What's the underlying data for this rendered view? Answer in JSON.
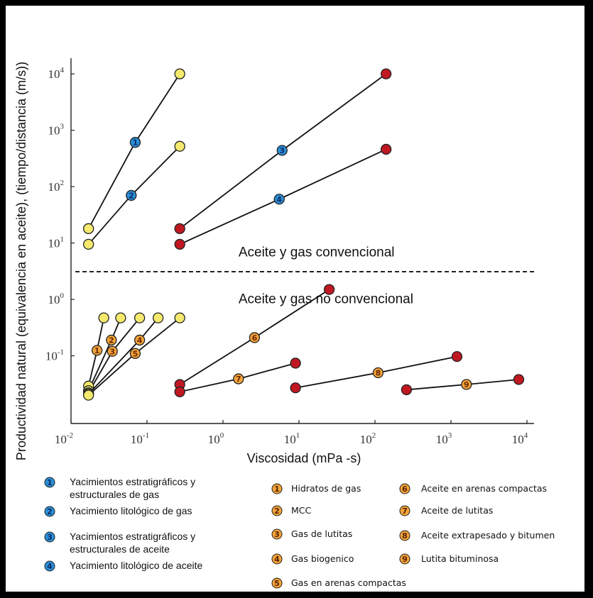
{
  "chart_data": {
    "type": "scatter",
    "title": "",
    "xlabel": "Viscosidad (mPa -s)",
    "ylabel": "Productividad natural (equivalencia en aceite), (tiempo/distancia (m/s))",
    "x_scale": "log",
    "y_scale": "log",
    "xlim": [
      0.01,
      10000
    ],
    "ylim": [
      0.0063,
      19000
    ],
    "x_ticks": [
      {
        "value": 0.01,
        "base": "10",
        "exp": "-2"
      },
      {
        "value": 0.1,
        "base": "10",
        "exp": "-1"
      },
      {
        "value": 1,
        "base": "10",
        "exp": "0"
      },
      {
        "value": 10,
        "base": "10",
        "exp": "1"
      },
      {
        "value": 100,
        "base": "10",
        "exp": "2"
      },
      {
        "value": 1000,
        "base": "10",
        "exp": "3"
      },
      {
        "value": 10000,
        "base": "10",
        "exp": "4"
      }
    ],
    "y_ticks": [
      {
        "value": 0.1,
        "base": "10",
        "exp": "-1"
      },
      {
        "value": 1,
        "base": "10",
        "exp": "0"
      },
      {
        "value": 10,
        "base": "10",
        "exp": "1"
      },
      {
        "value": 100,
        "base": "10",
        "exp": "2"
      },
      {
        "value": 1000,
        "base": "10",
        "exp": "3"
      },
      {
        "value": 10000,
        "base": "10",
        "exp": "4"
      }
    ],
    "grid": false,
    "divider_y": 3.1,
    "region_labels": [
      {
        "text": "Aceite y gas convencional",
        "x": 1.6,
        "y": 5.8
      },
      {
        "text": "Aceite y gas no convencional",
        "x": 1.6,
        "y": 0.86
      }
    ],
    "series": [
      {
        "id": "1",
        "group": "convencional",
        "x": [
          0.017,
          0.07,
          0.27
        ],
        "y": [
          18,
          610,
          10000
        ],
        "colors": [
          "#f5ea6e",
          "#2a8fd6",
          "#f5ea6e"
        ],
        "label_index": 1
      },
      {
        "id": "2",
        "group": "convencional",
        "x": [
          0.017,
          0.062,
          0.27
        ],
        "y": [
          9.5,
          70,
          520
        ],
        "colors": [
          "#f5ea6e",
          "#2a8fd6",
          "#f5ea6e"
        ],
        "label_index": 1
      },
      {
        "id": "3",
        "group": "convencional",
        "x": [
          0.27,
          6.0,
          140
        ],
        "y": [
          18,
          440,
          10000
        ],
        "colors": [
          "#c01822",
          "#2a8fd6",
          "#c01822"
        ],
        "label_index": 1
      },
      {
        "id": "4",
        "group": "convencional",
        "x": [
          0.27,
          5.5,
          140
        ],
        "y": [
          9.5,
          60,
          460
        ],
        "colors": [
          "#c01822",
          "#2a8fd6",
          "#c01822"
        ],
        "label_index": 1
      },
      {
        "id": "1",
        "group": "no-convencional",
        "x": [
          0.017,
          0.022,
          0.027
        ],
        "y": [
          0.029,
          0.125,
          0.47
        ],
        "colors": [
          "#f5ea6e",
          "#f2a33a",
          "#f5ea6e"
        ],
        "label_index": 1
      },
      {
        "id": "2",
        "group": "no-convencional",
        "x": [
          0.017,
          0.034,
          0.045
        ],
        "y": [
          0.024,
          0.19,
          0.47
        ],
        "colors": [
          "#f5ea6e",
          "#f2a33a",
          "#f5ea6e"
        ],
        "label_index": 1
      },
      {
        "id": "3",
        "group": "no-convencional",
        "x": [
          0.017,
          0.035,
          0.08
        ],
        "y": [
          0.022,
          0.12,
          0.47
        ],
        "colors": [
          "#f5ea6e",
          "#f2a33a",
          "#f5ea6e"
        ],
        "label_index": 1
      },
      {
        "id": "4",
        "group": "no-convencional",
        "x": [
          0.017,
          0.08,
          0.14
        ],
        "y": [
          0.021,
          0.19,
          0.47
        ],
        "colors": [
          "#f5ea6e",
          "#f2a33a",
          "#f5ea6e"
        ],
        "label_index": 1
      },
      {
        "id": "5",
        "group": "no-convencional",
        "x": [
          0.017,
          0.07,
          0.27
        ],
        "y": [
          0.02,
          0.11,
          0.47
        ],
        "colors": [
          "#f5ea6e",
          "#f2a33a",
          "#f5ea6e"
        ],
        "label_index": 1
      },
      {
        "id": "6",
        "group": "no-convencional",
        "x": [
          0.27,
          2.6,
          25
        ],
        "y": [
          0.031,
          0.21,
          1.5
        ],
        "colors": [
          "#c01822",
          "#f2a33a",
          "#c01822"
        ],
        "label_index": 1
      },
      {
        "id": "7",
        "group": "no-convencional",
        "x": [
          0.27,
          1.6,
          9
        ],
        "y": [
          0.023,
          0.039,
          0.074
        ],
        "colors": [
          "#c01822",
          "#f2a33a",
          "#c01822"
        ],
        "label_index": 1
      },
      {
        "id": "8",
        "group": "no-convencional",
        "x": [
          9,
          110,
          1200
        ],
        "y": [
          0.027,
          0.05,
          0.097
        ],
        "colors": [
          "#c01822",
          "#f2a33a",
          "#c01822"
        ],
        "label_index": 1
      },
      {
        "id": "9",
        "group": "no-convencional",
        "x": [
          260,
          1600,
          7800
        ],
        "y": [
          0.025,
          0.031,
          0.038
        ],
        "colors": [
          "#c01822",
          "#f2a33a",
          "#c01822"
        ],
        "label_index": 1
      }
    ],
    "legend": {
      "placement": "bottom",
      "blue": [
        {
          "num": "1",
          "lines": [
            "Yacimientos estratigráficos y",
            "estructurales de gas"
          ]
        },
        {
          "num": "2",
          "lines": [
            "Yacimiento litológico de gas"
          ]
        },
        {
          "num": "3",
          "lines": [
            "Yacimientos estratigráficos y",
            "estructurales de aceite"
          ]
        },
        {
          "num": "4",
          "lines": [
            "Yacimiento litológico de aceite"
          ]
        }
      ],
      "orange_col1": [
        {
          "num": "1",
          "text": "Hidratos de gas"
        },
        {
          "num": "2",
          "text": "MCC"
        },
        {
          "num": "3",
          "text": "Gas de lutitas"
        },
        {
          "num": "4",
          "text": "Gas biogenico"
        },
        {
          "num": "5",
          "text": "Gas en arenas compactas"
        }
      ],
      "orange_col2": [
        {
          "num": "6",
          "text": "Aceite en arenas compactas"
        },
        {
          "num": "7",
          "text": "Aceite de lutitas"
        },
        {
          "num": "8",
          "text": "Aceite extrapesado y bitumen"
        },
        {
          "num": "9",
          "text": "Lutita bituminosa"
        }
      ]
    },
    "colors": {
      "yellow": "#f5ea6e",
      "red": "#c01822",
      "blue": "#2a8fd6",
      "orange": "#f2a33a"
    }
  }
}
